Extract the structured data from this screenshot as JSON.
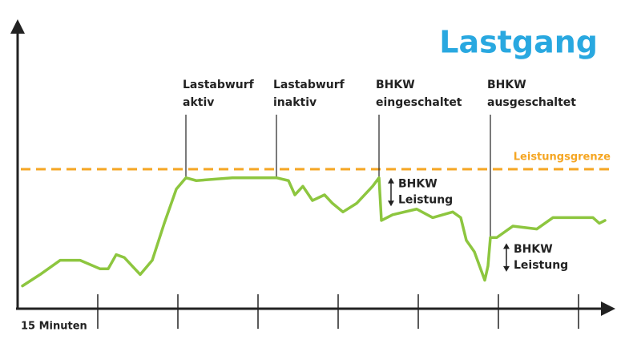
{
  "chart_data": {
    "type": "line",
    "title": "Lastgang",
    "x": [
      0.06,
      0.28,
      0.53,
      0.78,
      1.03,
      1.13,
      1.23,
      1.33,
      1.53,
      1.68,
      1.83,
      1.98,
      2.1,
      2.23,
      2.68,
      3.23,
      3.38,
      3.46,
      3.56,
      3.68,
      3.83,
      3.93,
      4.06,
      4.23,
      4.43,
      4.51,
      4.54,
      4.68,
      4.98,
      5.18,
      5.43,
      5.53,
      5.6,
      5.7,
      5.83,
      5.87,
      5.9,
      5.98,
      6.18,
      6.48,
      6.68,
      7.18,
      7.26,
      7.33
    ],
    "series": [
      {
        "color": "#8dc63f",
        "values": [
          8,
          12,
          17,
          17,
          14,
          14,
          19,
          18,
          12,
          17,
          30,
          42,
          46,
          45,
          46,
          46,
          45,
          40,
          43,
          38,
          40,
          37,
          34,
          37,
          43,
          46,
          31,
          33,
          35,
          32,
          34,
          32,
          24,
          20,
          10,
          15,
          25,
          25,
          29,
          28,
          32,
          32,
          30,
          31
        ]
      }
    ],
    "xlim": [
      0,
      7.4
    ],
    "ylim": [
      0,
      100
    ],
    "xticks": [
      1,
      2,
      3,
      4,
      5,
      6,
      7
    ],
    "x_label": "15 Minuten",
    "limit": {
      "value": 49,
      "label": "Leistungsgrenze",
      "color": "#f5a623"
    },
    "events": [
      {
        "x": 2.1,
        "text": [
          "Lastabwurf",
          "aktiv"
        ]
      },
      {
        "x": 3.23,
        "text": [
          "Lastabwurf",
          "inaktiv"
        ]
      },
      {
        "x": 4.51,
        "text": [
          "BHKW",
          "eingeschaltet"
        ]
      },
      {
        "x": 5.9,
        "text": [
          "BHKW",
          "ausgeschaltet"
        ]
      }
    ],
    "deltas": [
      {
        "x": 4.66,
        "from": 46,
        "to": 36,
        "text": [
          "BHKW",
          "Leistung"
        ]
      },
      {
        "x": 6.1,
        "from": 23,
        "to": 13,
        "text": [
          "BHKW",
          "Leistung"
        ]
      }
    ]
  }
}
